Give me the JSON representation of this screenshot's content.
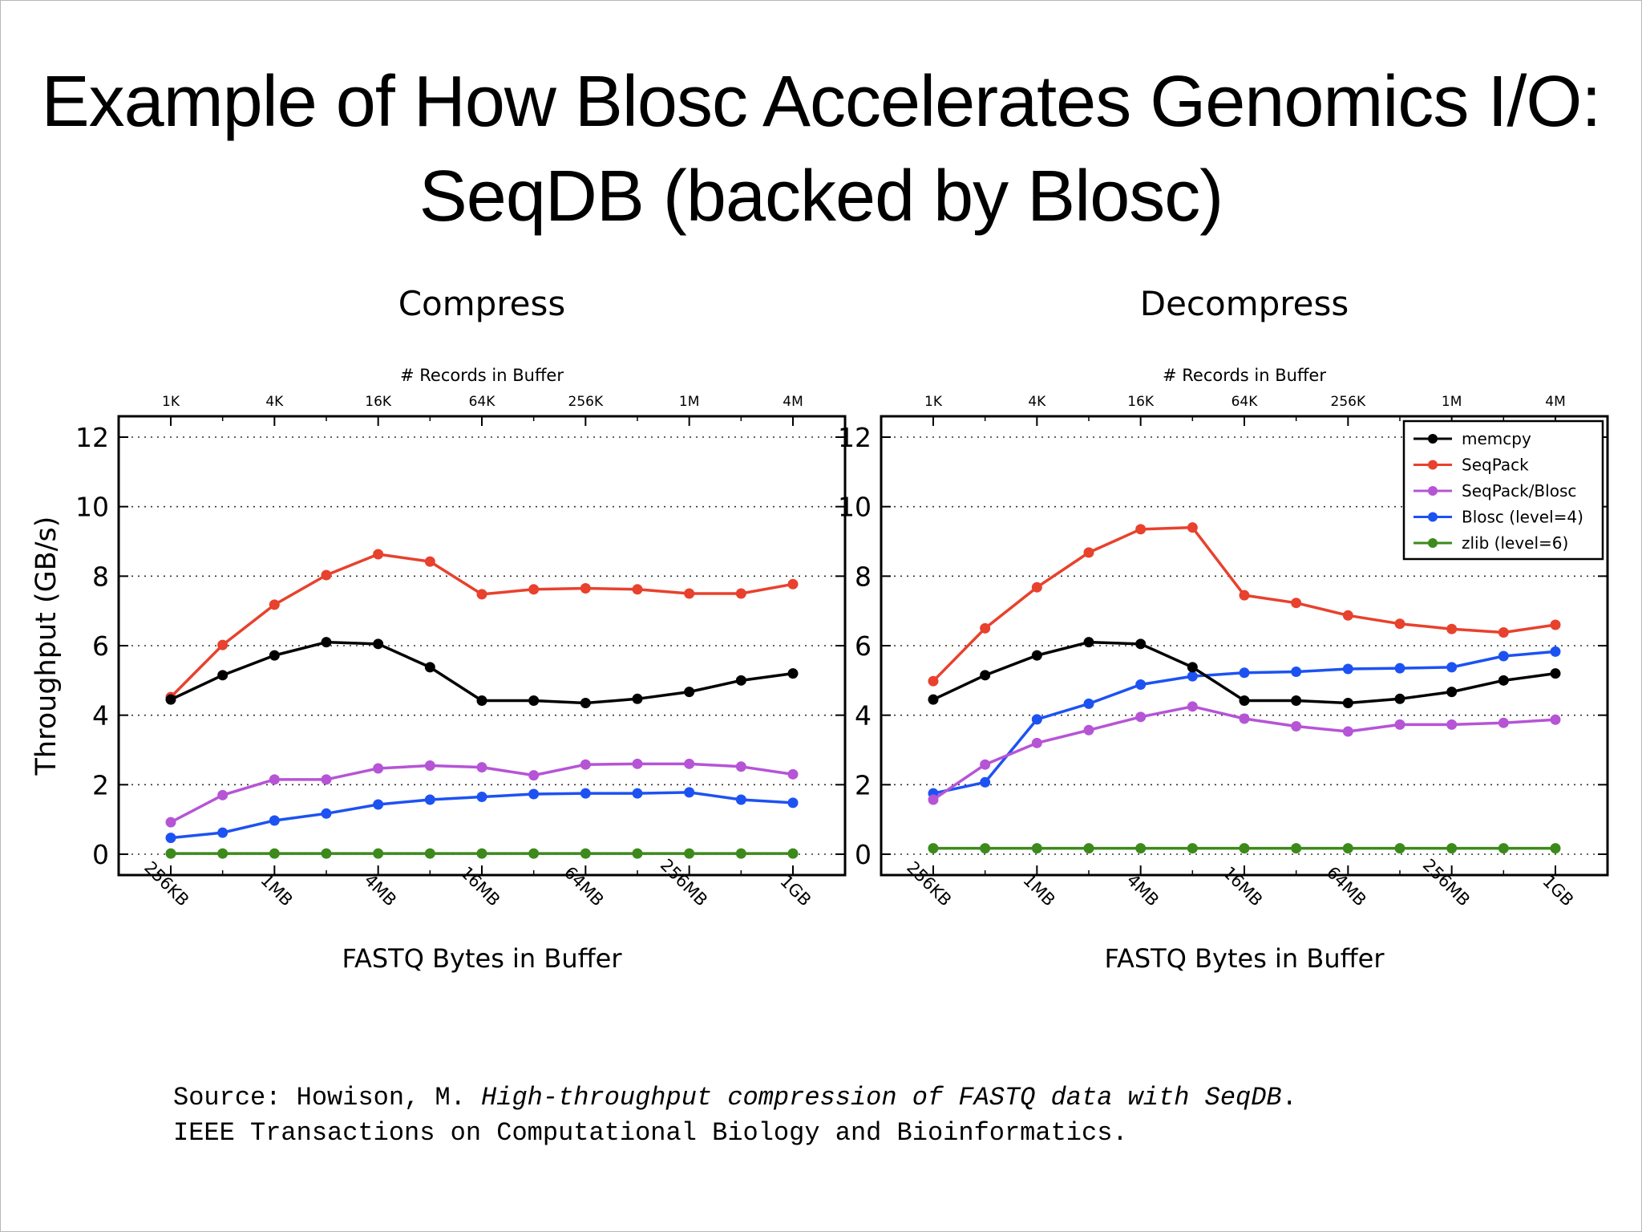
{
  "slide": {
    "title_line1": "Example of How Blosc Accelerates Genomics I/O:",
    "title_line2": "SeqDB (backed by Blosc)",
    "source": {
      "prefix": "Source: Howison, M. ",
      "paper_title": "High-throughput compression of FASTQ data with SeqDB",
      "suffix": ".",
      "line2": "IEEE Transactions on Computational Biology and Bioinformatics."
    }
  },
  "colors": {
    "memcpy": "#000000",
    "SeqPack": "#e8412d",
    "SeqPack/Blosc": "#b654d6",
    "Blosc (level=4)": "#1d52f2",
    "zlib (level=6)": "#3c8a1b"
  },
  "chart_data": [
    {
      "type": "line",
      "title": "Compress",
      "xlabel": "FASTQ Bytes in Buffer",
      "ylabel": "Throughput (GB/s)",
      "x2label": "# Records in Buffer",
      "x": [
        "256KB",
        "512KB",
        "1MB",
        "2MB",
        "4MB",
        "8MB",
        "16MB",
        "32MB",
        "64MB",
        "128MB",
        "256MB",
        "512MB",
        "1GB"
      ],
      "x_tick_labels": [
        "256KB",
        "1MB",
        "4MB",
        "16MB",
        "64MB",
        "256MB",
        "1GB"
      ],
      "x2_tick_labels": [
        "1K",
        "4K",
        "16K",
        "64K",
        "256K",
        "1M",
        "4M"
      ],
      "y_ticks": [
        "0",
        "2",
        "4",
        "6",
        "8",
        "10",
        "12"
      ],
      "ylim": [
        -0.6,
        12.6
      ],
      "grid": true,
      "legend": null,
      "series": [
        {
          "name": "memcpy",
          "values": [
            4.45,
            5.15,
            5.72,
            6.1,
            6.05,
            5.38,
            4.42,
            4.42,
            4.35,
            4.47,
            4.67,
            5.0,
            5.2
          ]
        },
        {
          "name": "SeqPack",
          "values": [
            4.52,
            6.02,
            7.18,
            8.03,
            8.63,
            8.42,
            7.48,
            7.62,
            7.65,
            7.62,
            7.5,
            7.5,
            7.77
          ]
        },
        {
          "name": "SeqPack/Blosc",
          "values": [
            0.92,
            1.7,
            2.15,
            2.15,
            2.47,
            2.55,
            2.5,
            2.27,
            2.58,
            2.6,
            2.6,
            2.52,
            2.3
          ]
        },
        {
          "name": "Blosc (level=4)",
          "values": [
            0.47,
            0.62,
            0.97,
            1.17,
            1.43,
            1.57,
            1.65,
            1.73,
            1.75,
            1.75,
            1.78,
            1.57,
            1.48
          ]
        },
        {
          "name": "zlib (level=6)",
          "values": [
            0.02,
            0.02,
            0.02,
            0.02,
            0.02,
            0.02,
            0.02,
            0.02,
            0.02,
            0.02,
            0.02,
            0.02,
            0.02
          ]
        }
      ]
    },
    {
      "type": "line",
      "title": "Decompress",
      "xlabel": "FASTQ Bytes in Buffer",
      "ylabel": "",
      "x2label": "# Records in Buffer",
      "x": [
        "256KB",
        "512KB",
        "1MB",
        "2MB",
        "4MB",
        "8MB",
        "16MB",
        "32MB",
        "64MB",
        "128MB",
        "256MB",
        "512MB",
        "1GB"
      ],
      "x_tick_labels": [
        "256KB",
        "1MB",
        "4MB",
        "16MB",
        "64MB",
        "256MB",
        "1GB"
      ],
      "x2_tick_labels": [
        "1K",
        "4K",
        "16K",
        "64K",
        "256K",
        "1M",
        "4M"
      ],
      "y_ticks": [
        "0",
        "2",
        "4",
        "6",
        "8",
        "10",
        "12"
      ],
      "ylim": [
        -0.6,
        12.6
      ],
      "grid": true,
      "legend": "top-right",
      "series": [
        {
          "name": "memcpy",
          "values": [
            4.45,
            5.15,
            5.72,
            6.1,
            6.05,
            5.38,
            4.42,
            4.42,
            4.35,
            4.47,
            4.67,
            5.0,
            5.2
          ]
        },
        {
          "name": "SeqPack",
          "values": [
            4.98,
            6.5,
            7.68,
            8.68,
            9.35,
            9.4,
            7.45,
            7.23,
            6.87,
            6.63,
            6.48,
            6.38,
            6.6
          ]
        },
        {
          "name": "SeqPack/Blosc",
          "values": [
            1.57,
            2.58,
            3.2,
            3.57,
            3.95,
            4.25,
            3.9,
            3.68,
            3.53,
            3.73,
            3.73,
            3.78,
            3.87
          ]
        },
        {
          "name": "Blosc (level=4)",
          "values": [
            1.75,
            2.07,
            3.88,
            4.33,
            4.88,
            5.12,
            5.22,
            5.25,
            5.33,
            5.35,
            5.38,
            5.7,
            5.83
          ]
        },
        {
          "name": "zlib (level=6)",
          "values": [
            0.17,
            0.17,
            0.17,
            0.17,
            0.17,
            0.17,
            0.17,
            0.17,
            0.17,
            0.17,
            0.17,
            0.17,
            0.17
          ]
        }
      ]
    }
  ]
}
